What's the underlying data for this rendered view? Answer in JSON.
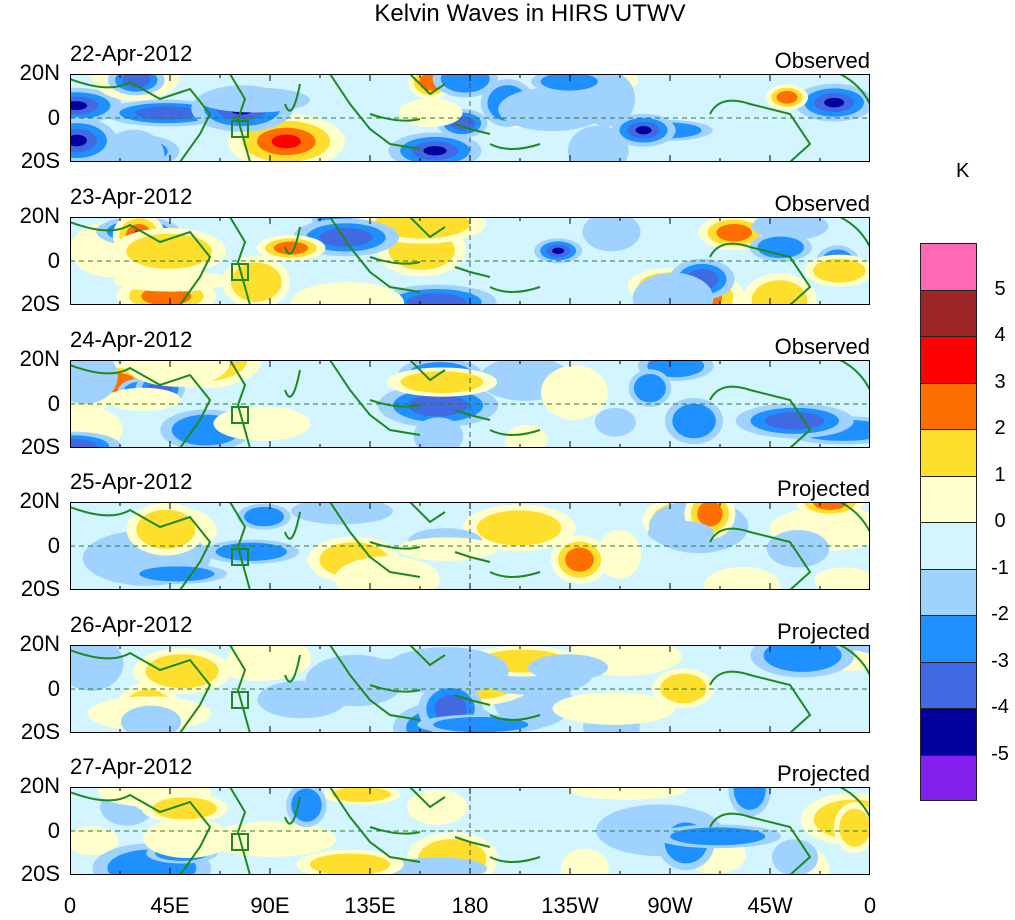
{
  "title": "Kelvin Waves in HIRS UTWV",
  "panels": [
    {
      "date": "22-Apr-2012",
      "status": "Observed"
    },
    {
      "date": "23-Apr-2012",
      "status": "Observed"
    },
    {
      "date": "24-Apr-2012",
      "status": "Observed"
    },
    {
      "date": "25-Apr-2012",
      "status": "Projected"
    },
    {
      "date": "26-Apr-2012",
      "status": "Projected"
    },
    {
      "date": "27-Apr-2012",
      "status": "Projected"
    }
  ],
  "lat_labels": [
    "20N",
    "0",
    "20S"
  ],
  "lon_labels": [
    "0",
    "45E",
    "90E",
    "135E",
    "180",
    "135W",
    "90W",
    "45W",
    "0"
  ],
  "colorbar": {
    "unit": "K",
    "levels": [
      "5",
      "4",
      "3",
      "2",
      "1",
      "0",
      "-1",
      "-2",
      "-3",
      "-4",
      "-5"
    ],
    "colors": [
      "#ff69b4",
      "#9c2626",
      "#ff0000",
      "#ff6e00",
      "#ffdf2e",
      "#ffffcc",
      "#d2f5ff",
      "#a0d2ff",
      "#1e90ff",
      "#4169e1",
      "#00009c",
      "#8320ee"
    ]
  }
}
